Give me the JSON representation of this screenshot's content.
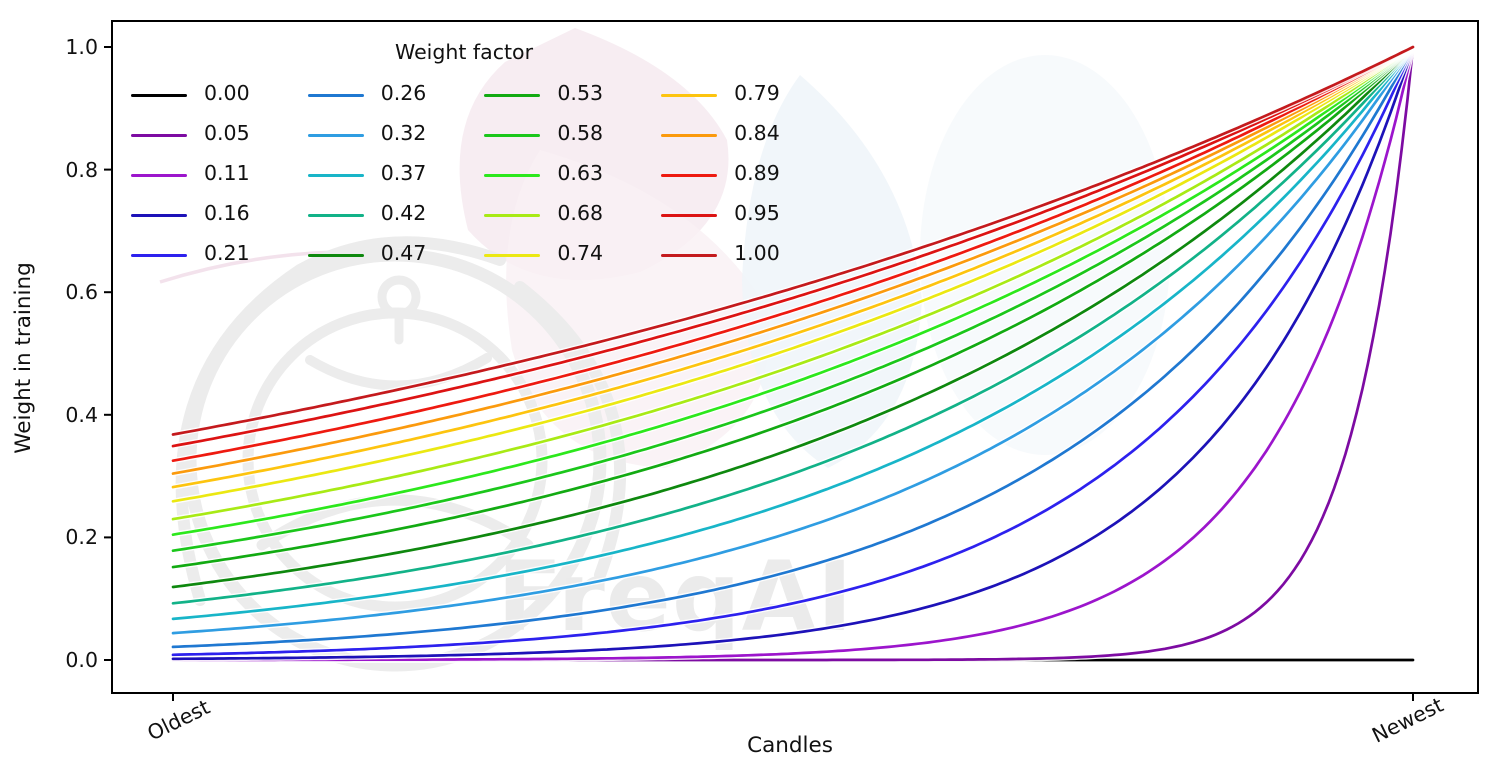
{
  "chart_data": {
    "type": "line",
    "title": "",
    "xlabel": "Candles",
    "ylabel": "Weight in training",
    "x_tick_labels": [
      "Oldest",
      "Newest"
    ],
    "y_tick_labels": [
      "0.0",
      "0.2",
      "0.4",
      "0.6",
      "0.8",
      "1.0"
    ],
    "y_ticks": [
      0.0,
      0.2,
      0.4,
      0.6,
      0.8,
      1.0
    ],
    "ylim": [
      0.0,
      1.0
    ],
    "grid": false,
    "x_range_description": "candles from oldest (left) to newest (right), normalized t in [0,1]",
    "curve_formula": "weight(t) = exp(-(1 - t) / weight_factor); weight_factor = 0 weights every candle except the newest at 0",
    "weight_at_newest": 1.0,
    "legend": {
      "title": "Weight factor",
      "columns": 4,
      "position": "upper left",
      "frame": false
    },
    "series": [
      {
        "label": "0.00",
        "weight_factor": 0.0,
        "color": "#000000",
        "weight_at_oldest": 0.0
      },
      {
        "label": "0.05",
        "weight_factor": 0.05,
        "color": "#7d0ba2",
        "weight_at_oldest": 0.0
      },
      {
        "label": "0.11",
        "weight_factor": 0.11,
        "color": "#9c15cc",
        "weight_at_oldest": 0.0001
      },
      {
        "label": "0.16",
        "weight_factor": 0.16,
        "color": "#1d12b8",
        "weight_at_oldest": 0.0019
      },
      {
        "label": "0.21",
        "weight_factor": 0.21,
        "color": "#2d21ee",
        "weight_at_oldest": 0.0086
      },
      {
        "label": "0.26",
        "weight_factor": 0.26,
        "color": "#1f78d1",
        "weight_at_oldest": 0.0214
      },
      {
        "label": "0.32",
        "weight_factor": 0.32,
        "color": "#2f9de2",
        "weight_at_oldest": 0.0439
      },
      {
        "label": "0.37",
        "weight_factor": 0.37,
        "color": "#18b5c8",
        "weight_at_oldest": 0.067
      },
      {
        "label": "0.42",
        "weight_factor": 0.42,
        "color": "#12b288",
        "weight_at_oldest": 0.0924
      },
      {
        "label": "0.47",
        "weight_factor": 0.47,
        "color": "#0e880e",
        "weight_at_oldest": 0.1191
      },
      {
        "label": "0.53",
        "weight_factor": 0.53,
        "color": "#12aa12",
        "weight_at_oldest": 0.1516
      },
      {
        "label": "0.58",
        "weight_factor": 0.58,
        "color": "#1bc71b",
        "weight_at_oldest": 0.1783
      },
      {
        "label": "0.63",
        "weight_factor": 0.63,
        "color": "#2ce81c",
        "weight_at_oldest": 0.2045
      },
      {
        "label": "0.68",
        "weight_factor": 0.68,
        "color": "#a8ea15",
        "weight_at_oldest": 0.2298
      },
      {
        "label": "0.74",
        "weight_factor": 0.74,
        "color": "#ebe812",
        "weight_at_oldest": 0.2589
      },
      {
        "label": "0.79",
        "weight_factor": 0.79,
        "color": "#fdc40f",
        "weight_at_oldest": 0.282
      },
      {
        "label": "0.84",
        "weight_factor": 0.84,
        "color": "#fb9a0d",
        "weight_at_oldest": 0.3041
      },
      {
        "label": "0.89",
        "weight_factor": 0.89,
        "color": "#ee1a10",
        "weight_at_oldest": 0.3251
      },
      {
        "label": "0.95",
        "weight_factor": 0.95,
        "color": "#dc1313",
        "weight_at_oldest": 0.3489
      },
      {
        "label": "1.00",
        "weight_factor": 1.0,
        "color": "#c41a1d",
        "weight_at_oldest": 0.3679
      }
    ]
  },
  "watermark": {
    "text": "FreqAI",
    "text_color": "#ebebeb",
    "logo_color": "#ececec",
    "leaf_pink": "#f7edf2",
    "leaf_pink_soft": "#f9f0f4",
    "leaf_blue": "#eef5f9"
  }
}
